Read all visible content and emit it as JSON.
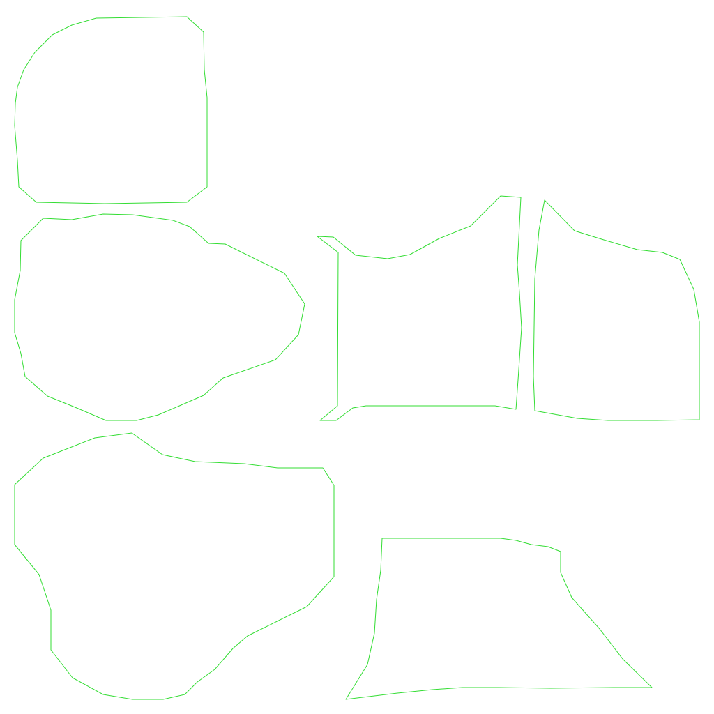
{
  "colors": {
    "background": "#ffffff",
    "outline": "#33dd33"
  },
  "shapes": [
    {
      "name": "outline-top-left"
    },
    {
      "name": "outline-middle-left"
    },
    {
      "name": "outline-bottom-left"
    },
    {
      "name": "outline-center"
    },
    {
      "name": "outline-right"
    },
    {
      "name": "outline-bottom-right"
    }
  ]
}
